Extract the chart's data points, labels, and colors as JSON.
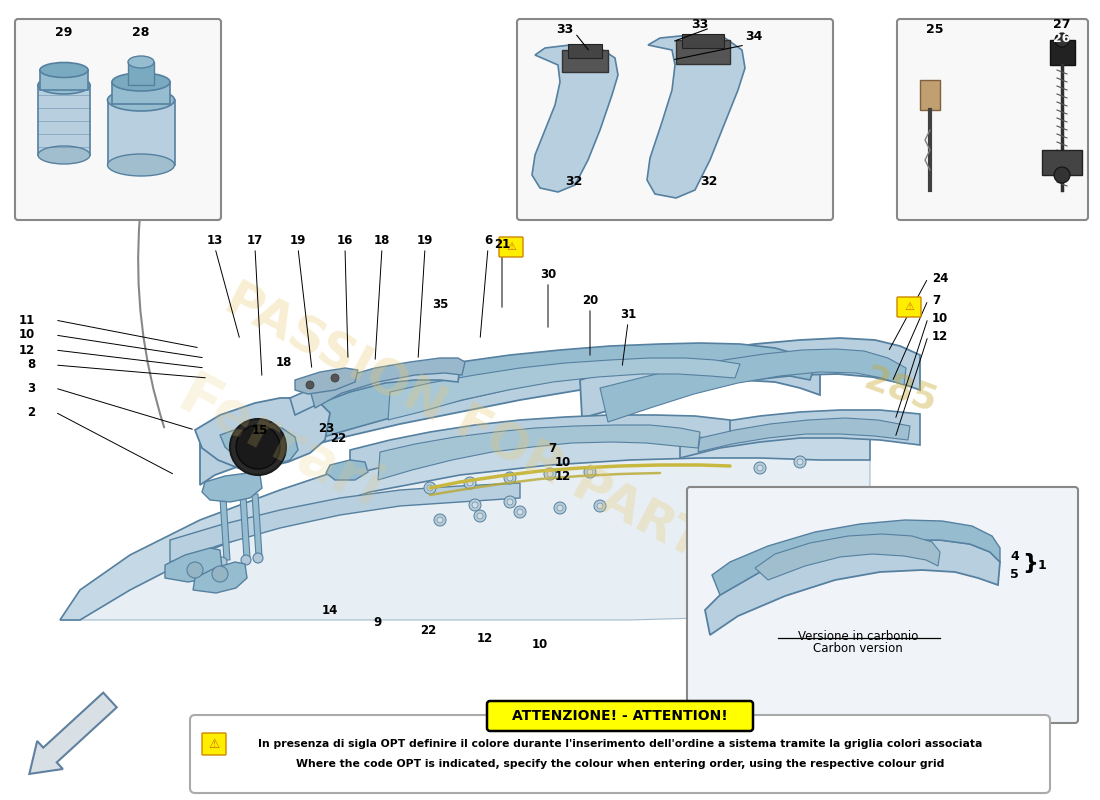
{
  "bg_color": "#ffffff",
  "lc": "#b8cfe0",
  "mc": "#96bcd0",
  "dc": "#7aaac0",
  "ec": "#5580a0",
  "attention_bg": "#ffff00",
  "attention_border": "#000000",
  "attention_title": "ATTENZIONE! - ATTENTION!",
  "attention_line1": "In presenza di sigla OPT definire il colore durante l'inserimento dell'ordine a sistema tramite la griglia colori associata",
  "attention_line2": "Where the code OPT is indicated, specify the colour when entering order, using the respective colour grid",
  "watermark_color": "#e8c870",
  "carbon_text1": "Versione in carbonio",
  "carbon_text2": "Carbon version"
}
